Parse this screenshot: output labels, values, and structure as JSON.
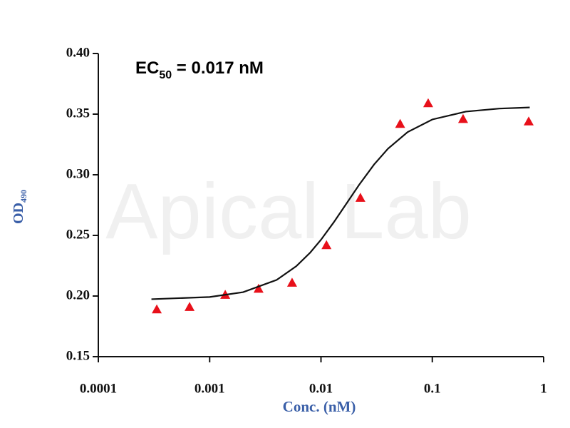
{
  "chart_data": {
    "type": "scatter",
    "watermark": "Apical Lab",
    "annotation": {
      "text": "EC",
      "sub": "50",
      "rest": " = 0.017 nM"
    },
    "ylabel": "OD",
    "ylabel_sub": "490",
    "xlabel": "Conc. (nM)",
    "xscale": "log",
    "xlim": [
      0.0001,
      1
    ],
    "xticks": [
      0.0001,
      0.001,
      0.01,
      0.1,
      1
    ],
    "ylim": [
      0.15,
      0.4
    ],
    "yticks": [
      {
        "value": 0.15,
        "label": "0.15"
      },
      {
        "value": 0.2,
        "label": "0.20"
      },
      {
        "value": 0.25,
        "label": "0.25"
      },
      {
        "value": 0.3,
        "label": "0.30"
      },
      {
        "value": 0.35,
        "label": "0.35"
      },
      {
        "value": 0.4,
        "label": "0.40"
      }
    ],
    "series": [
      {
        "mode": "markers",
        "marker": "triangle",
        "color": "#e8101a",
        "x": [
          0.000335,
          0.00066,
          0.00138,
          0.00275,
          0.0055,
          0.0112,
          0.0226,
          0.0514,
          0.0918,
          0.189,
          0.734
        ],
        "values": [
          0.189,
          0.191,
          0.201,
          0.206,
          0.211,
          0.242,
          0.281,
          0.342,
          0.359,
          0.346,
          0.344
        ]
      },
      {
        "mode": "line",
        "color": "#111111",
        "x": [
          0.0003,
          0.001,
          0.002,
          0.004,
          0.006,
          0.008,
          0.01,
          0.013,
          0.017,
          0.022,
          0.03,
          0.04,
          0.06,
          0.1,
          0.2,
          0.4,
          0.75
        ],
        "values": [
          0.1974,
          0.1992,
          0.2032,
          0.2133,
          0.2246,
          0.2358,
          0.2464,
          0.2607,
          0.2765,
          0.2917,
          0.3085,
          0.3215,
          0.3352,
          0.3456,
          0.3521,
          0.3546,
          0.3555
        ]
      }
    ]
  }
}
